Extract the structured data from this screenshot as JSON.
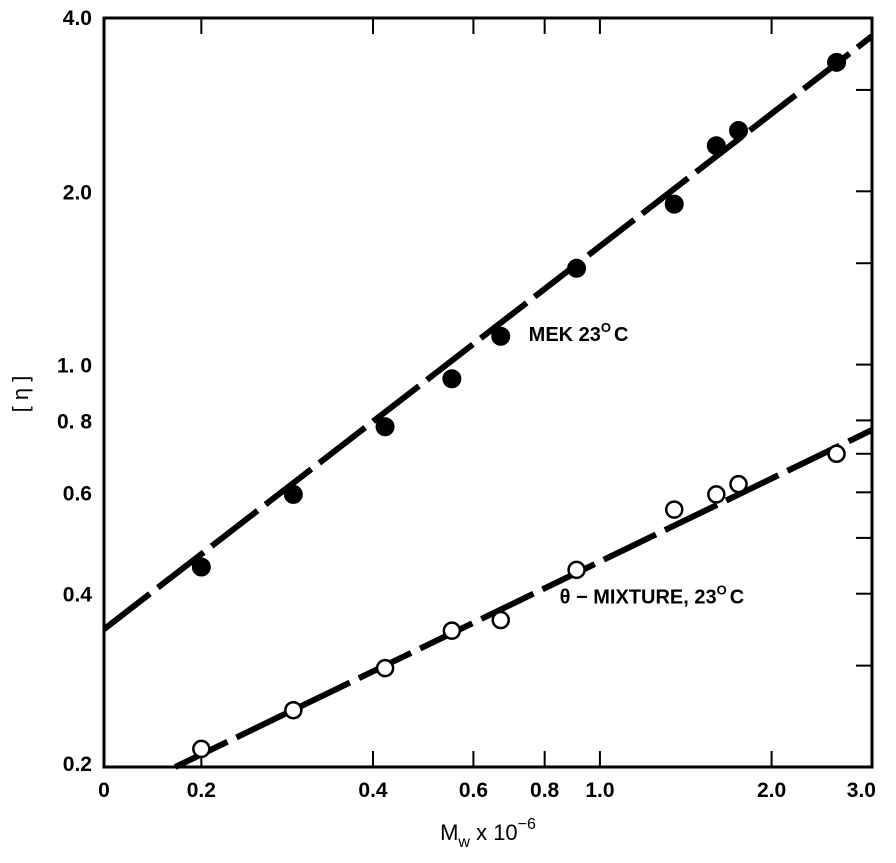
{
  "chart_data": {
    "type": "scatter",
    "scale": "log-log",
    "xlim": [
      0.135,
      3.0
    ],
    "ylim": [
      0.2,
      4.0
    ],
    "xlabel": {
      "main": "M",
      "sub": "w",
      "rest": " x 10",
      "sup": "−6"
    },
    "ylabel": "[ η ]",
    "x_ticks": [
      {
        "value": 0.135,
        "label": "0"
      },
      {
        "value": 0.2,
        "label": "0.2"
      },
      {
        "value": 0.4,
        "label": "0.4"
      },
      {
        "value": 0.6,
        "label": "0.6"
      },
      {
        "value": 0.8,
        "label": "0.8"
      },
      {
        "value": 1.0,
        "label": "1.0"
      },
      {
        "value": 2.0,
        "label": "2.0"
      },
      {
        "value": 3.0,
        "label": "3.0"
      }
    ],
    "y_ticks": [
      {
        "value": 0.2,
        "label": "0.2"
      },
      {
        "value": 0.4,
        "label": "0.4"
      },
      {
        "value": 0.6,
        "label": "0.6"
      },
      {
        "value": 0.8,
        "label": "0. 8"
      },
      {
        "value": 1.0,
        "label": "1. 0"
      },
      {
        "value": 2.0,
        "label": "2.0"
      },
      {
        "value": 4.0,
        "label": "4.0"
      }
    ],
    "minor_y_ticks": [
      0.3,
      0.5,
      0.7,
      1.5,
      3.0
    ],
    "series": [
      {
        "name": "MEK 23ºC",
        "marker": "filled-circle",
        "fit": {
          "x0": 0.135,
          "y0": 0.347,
          "x1": 3.0,
          "y1": 3.72
        },
        "points": [
          {
            "x": 0.2,
            "y": 0.445
          },
          {
            "x": 0.29,
            "y": 0.595
          },
          {
            "x": 0.42,
            "y": 0.78
          },
          {
            "x": 0.55,
            "y": 0.945
          },
          {
            "x": 0.67,
            "y": 1.12
          },
          {
            "x": 0.91,
            "y": 1.47
          },
          {
            "x": 1.35,
            "y": 1.9
          },
          {
            "x": 1.6,
            "y": 2.4
          },
          {
            "x": 1.75,
            "y": 2.55
          },
          {
            "x": 2.6,
            "y": 3.35
          }
        ]
      },
      {
        "name": "θ – MIXTURE, 23ºC",
        "marker": "open-circle",
        "fit": {
          "x0": 0.18,
          "y0": 0.2,
          "x1": 3.0,
          "y1": 0.77
        },
        "points": [
          {
            "x": 0.2,
            "y": 0.215
          },
          {
            "x": 0.29,
            "y": 0.251
          },
          {
            "x": 0.42,
            "y": 0.297
          },
          {
            "x": 0.55,
            "y": 0.345
          },
          {
            "x": 0.67,
            "y": 0.36
          },
          {
            "x": 0.91,
            "y": 0.44
          },
          {
            "x": 1.35,
            "y": 0.56
          },
          {
            "x": 1.6,
            "y": 0.595
          },
          {
            "x": 1.75,
            "y": 0.62
          },
          {
            "x": 2.6,
            "y": 0.7
          }
        ]
      }
    ],
    "annotations": [
      {
        "text": "MEK 23",
        "sup": "O",
        "tail": "C",
        "x": 0.75,
        "y": 1.1
      },
      {
        "text": "θ − MIXTURE, 23",
        "sup": "O",
        "tail": "C",
        "x": 0.85,
        "y": 0.385
      }
    ]
  }
}
